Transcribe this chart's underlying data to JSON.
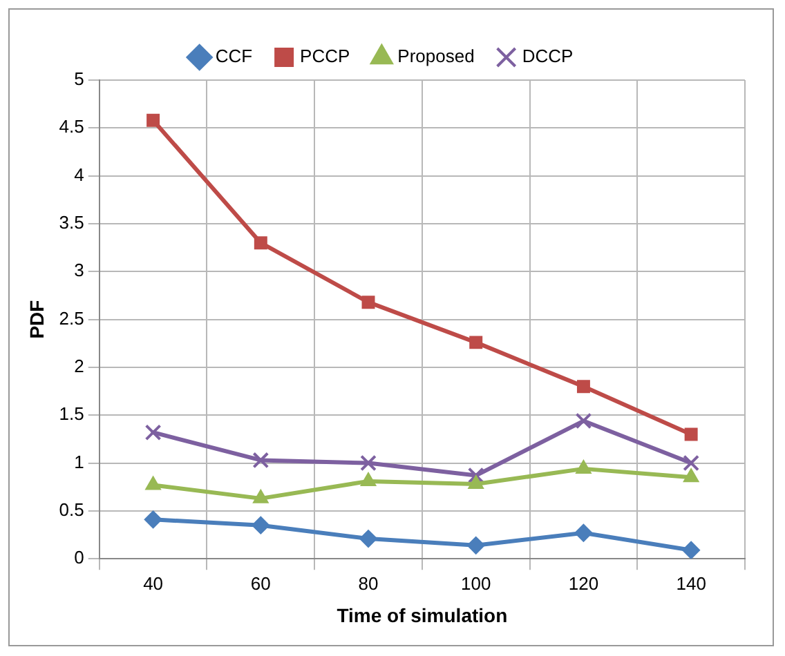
{
  "chart_data": {
    "type": "line",
    "xlabel": "Time of simulation",
    "ylabel": "PDF",
    "categories": [
      "40",
      "60",
      "80",
      "100",
      "120",
      "140"
    ],
    "series": [
      {
        "name": "CCF",
        "color": "#4a7ebb",
        "marker": "diamond",
        "values": [
          0.41,
          0.35,
          0.21,
          0.14,
          0.27,
          0.09
        ]
      },
      {
        "name": "PCCP",
        "color": "#be4b48",
        "marker": "square",
        "values": [
          4.58,
          3.3,
          2.68,
          2.26,
          1.8,
          1.3
        ]
      },
      {
        "name": "Proposed",
        "color": "#98b954",
        "marker": "triangle",
        "values": [
          0.77,
          0.63,
          0.81,
          0.78,
          0.94,
          0.85
        ]
      },
      {
        "name": "DCCP",
        "color": "#7d60a0",
        "marker": "cross",
        "values": [
          1.32,
          1.03,
          1.0,
          0.87,
          1.44,
          1.0
        ]
      }
    ],
    "ylim": [
      0,
      5
    ],
    "yticks": [
      0,
      0.5,
      1,
      1.5,
      2,
      2.5,
      3,
      3.5,
      4,
      4.5,
      5
    ],
    "grid": true,
    "legend": "top"
  }
}
